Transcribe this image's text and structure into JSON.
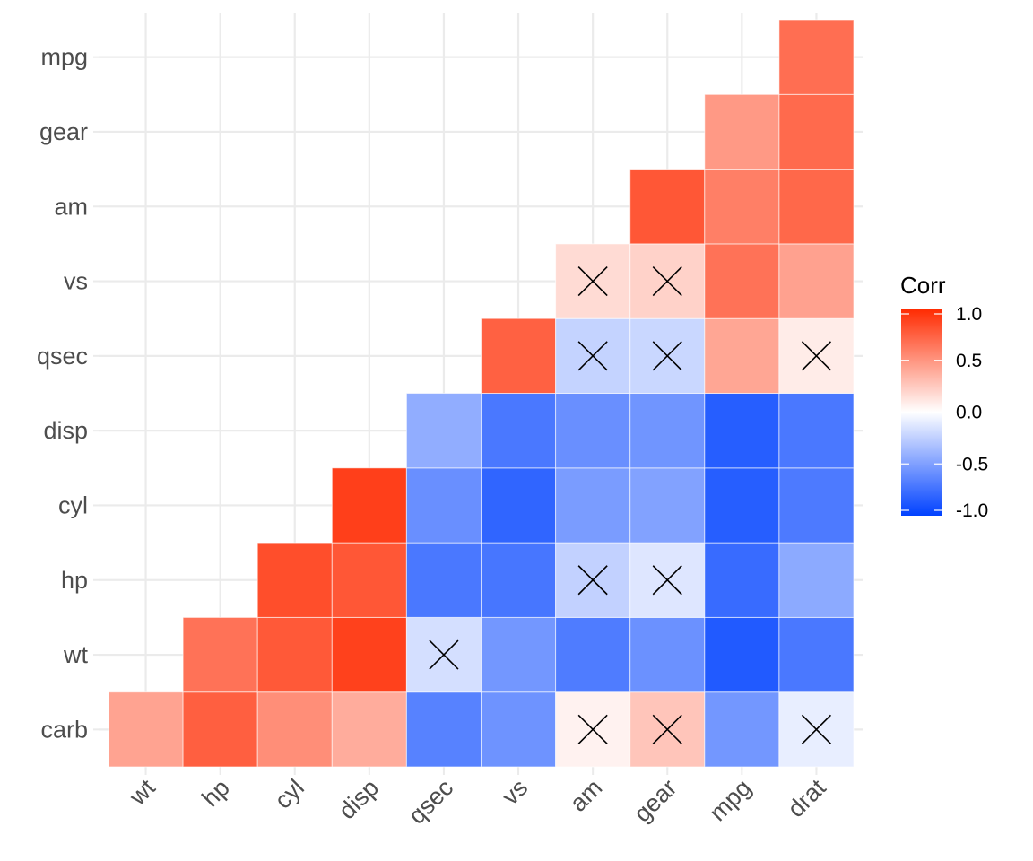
{
  "chart_data": {
    "type": "heatmap",
    "title": "",
    "xlabel": "",
    "ylabel": "",
    "x_categories": [
      "wt",
      "hp",
      "cyl",
      "disp",
      "qsec",
      "vs",
      "am",
      "gear",
      "mpg",
      "drat"
    ],
    "y_categories": [
      "carb",
      "wt",
      "hp",
      "cyl",
      "disp",
      "qsec",
      "vs",
      "am",
      "gear",
      "mpg"
    ],
    "grid": true,
    "legend": {
      "title": "Corr",
      "position": "right",
      "ticks": [
        "1.0",
        "0.5",
        "0.0",
        "-0.5",
        "-1.0"
      ],
      "tick_values": [
        1.0,
        0.5,
        0.0,
        -0.5,
        -1.0
      ],
      "range": [
        -1,
        1
      ],
      "colors": {
        "low": "#0041ff",
        "mid": "#ffffff",
        "high": "#ff2a00"
      }
    },
    "insignificant_marker": "X",
    "cells": [
      {
        "x": "wt",
        "y": "carb",
        "value": 0.43,
        "insignificant": false
      },
      {
        "x": "hp",
        "y": "carb",
        "value": 0.75,
        "insignificant": false
      },
      {
        "x": "cyl",
        "y": "carb",
        "value": 0.53,
        "insignificant": false
      },
      {
        "x": "disp",
        "y": "carb",
        "value": 0.39,
        "insignificant": false
      },
      {
        "x": "qsec",
        "y": "carb",
        "value": -0.66,
        "insignificant": false
      },
      {
        "x": "vs",
        "y": "carb",
        "value": -0.57,
        "insignificant": false
      },
      {
        "x": "am",
        "y": "carb",
        "value": 0.06,
        "insignificant": true
      },
      {
        "x": "gear",
        "y": "carb",
        "value": 0.27,
        "insignificant": true
      },
      {
        "x": "mpg",
        "y": "carb",
        "value": -0.55,
        "insignificant": false
      },
      {
        "x": "drat",
        "y": "carb",
        "value": -0.09,
        "insignificant": true
      },
      {
        "x": "hp",
        "y": "wt",
        "value": 0.66,
        "insignificant": false
      },
      {
        "x": "cyl",
        "y": "wt",
        "value": 0.78,
        "insignificant": false
      },
      {
        "x": "disp",
        "y": "wt",
        "value": 0.89,
        "insignificant": false
      },
      {
        "x": "qsec",
        "y": "wt",
        "value": -0.17,
        "insignificant": true
      },
      {
        "x": "vs",
        "y": "wt",
        "value": -0.55,
        "insignificant": false
      },
      {
        "x": "am",
        "y": "wt",
        "value": -0.69,
        "insignificant": false
      },
      {
        "x": "gear",
        "y": "wt",
        "value": -0.58,
        "insignificant": false
      },
      {
        "x": "mpg",
        "y": "wt",
        "value": -0.87,
        "insignificant": false
      },
      {
        "x": "drat",
        "y": "wt",
        "value": -0.71,
        "insignificant": false
      },
      {
        "x": "cyl",
        "y": "hp",
        "value": 0.83,
        "insignificant": false
      },
      {
        "x": "disp",
        "y": "hp",
        "value": 0.79,
        "insignificant": false
      },
      {
        "x": "qsec",
        "y": "hp",
        "value": -0.71,
        "insignificant": false
      },
      {
        "x": "vs",
        "y": "hp",
        "value": -0.72,
        "insignificant": false
      },
      {
        "x": "am",
        "y": "hp",
        "value": -0.24,
        "insignificant": true
      },
      {
        "x": "gear",
        "y": "hp",
        "value": -0.13,
        "insignificant": true
      },
      {
        "x": "mpg",
        "y": "hp",
        "value": -0.78,
        "insignificant": false
      },
      {
        "x": "drat",
        "y": "hp",
        "value": -0.45,
        "insignificant": false
      },
      {
        "x": "disp",
        "y": "cyl",
        "value": 0.9,
        "insignificant": false
      },
      {
        "x": "qsec",
        "y": "cyl",
        "value": -0.59,
        "insignificant": false
      },
      {
        "x": "vs",
        "y": "cyl",
        "value": -0.81,
        "insignificant": false
      },
      {
        "x": "am",
        "y": "cyl",
        "value": -0.52,
        "insignificant": false
      },
      {
        "x": "gear",
        "y": "cyl",
        "value": -0.49,
        "insignificant": false
      },
      {
        "x": "mpg",
        "y": "cyl",
        "value": -0.85,
        "insignificant": false
      },
      {
        "x": "drat",
        "y": "cyl",
        "value": -0.7,
        "insignificant": false
      },
      {
        "x": "qsec",
        "y": "disp",
        "value": -0.43,
        "insignificant": false
      },
      {
        "x": "vs",
        "y": "disp",
        "value": -0.71,
        "insignificant": false
      },
      {
        "x": "am",
        "y": "disp",
        "value": -0.59,
        "insignificant": false
      },
      {
        "x": "gear",
        "y": "disp",
        "value": -0.56,
        "insignificant": false
      },
      {
        "x": "mpg",
        "y": "disp",
        "value": -0.85,
        "insignificant": false
      },
      {
        "x": "drat",
        "y": "disp",
        "value": -0.71,
        "insignificant": false
      },
      {
        "x": "vs",
        "y": "qsec",
        "value": 0.74,
        "insignificant": false
      },
      {
        "x": "am",
        "y": "qsec",
        "value": -0.23,
        "insignificant": true
      },
      {
        "x": "gear",
        "y": "qsec",
        "value": -0.21,
        "insignificant": true
      },
      {
        "x": "mpg",
        "y": "qsec",
        "value": 0.42,
        "insignificant": false
      },
      {
        "x": "drat",
        "y": "qsec",
        "value": 0.09,
        "insignificant": true
      },
      {
        "x": "am",
        "y": "vs",
        "value": 0.17,
        "insignificant": true
      },
      {
        "x": "gear",
        "y": "vs",
        "value": 0.21,
        "insignificant": true
      },
      {
        "x": "mpg",
        "y": "vs",
        "value": 0.66,
        "insignificant": false
      },
      {
        "x": "drat",
        "y": "vs",
        "value": 0.44,
        "insignificant": false
      },
      {
        "x": "gear",
        "y": "am",
        "value": 0.79,
        "insignificant": false
      },
      {
        "x": "mpg",
        "y": "am",
        "value": 0.6,
        "insignificant": false
      },
      {
        "x": "drat",
        "y": "am",
        "value": 0.71,
        "insignificant": false
      },
      {
        "x": "mpg",
        "y": "gear",
        "value": 0.48,
        "insignificant": false
      },
      {
        "x": "drat",
        "y": "gear",
        "value": 0.7,
        "insignificant": false
      },
      {
        "x": "drat",
        "y": "mpg",
        "value": 0.68,
        "insignificant": false
      }
    ]
  }
}
